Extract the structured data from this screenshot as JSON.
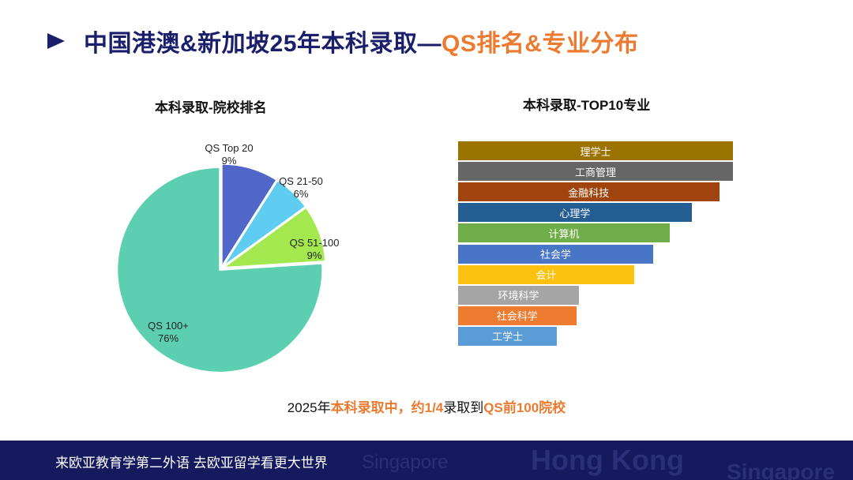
{
  "header": {
    "title_main": "中国港澳&新加坡25年本科录取—",
    "title_accent": "QS排名&专业分布",
    "arrow_icon": "triangle-right-icon",
    "colors": {
      "primary": "#1b1f6b",
      "accent": "#ec7a30"
    }
  },
  "chart_data": [
    {
      "type": "pie",
      "title": "本科录取-院校排名",
      "slices": [
        {
          "label": "QS Top 20",
          "value": 9,
          "value_label": "9%",
          "color": "#5067c9"
        },
        {
          "label": "QS 21-50",
          "value": 6,
          "value_label": "6%",
          "color": "#5fcdf2"
        },
        {
          "label": "QS 51-100",
          "value": 9,
          "value_label": "9%",
          "color": "#a4e84f"
        },
        {
          "label": "QS 100+",
          "value": 76,
          "value_label": "76%",
          "color": "#5ccfb0"
        }
      ]
    },
    {
      "type": "bar",
      "orientation": "horizontal",
      "title": "本科录取-TOP10专业",
      "categories": [
        "理学士",
        "工商管理",
        "金融科技",
        "心理学",
        "计算机",
        "社会学",
        "会计",
        "环境科学",
        "社会科学",
        "工学士"
      ],
      "values": [
        100,
        100,
        95,
        85,
        77,
        71,
        64,
        44,
        43,
        36
      ],
      "colors": [
        "#9b7300",
        "#666666",
        "#9e440c",
        "#245d92",
        "#6fad48",
        "#4875c6",
        "#fdc10f",
        "#a5a5a5",
        "#ed7b30",
        "#5b9bd6"
      ],
      "xlim": [
        0,
        100
      ]
    }
  ],
  "summary": {
    "prefix": "2025年",
    "acc1": "本科录取中，约1/4",
    "mid": "录取到",
    "acc2": "QS前100院校"
  },
  "footer": {
    "slogan": "来欧亚教育学第二外语   去欧亚留学看更大世界",
    "watermark_1": "Singapore",
    "watermark_2": "Hong Kong",
    "watermark_3": "Singapore"
  }
}
